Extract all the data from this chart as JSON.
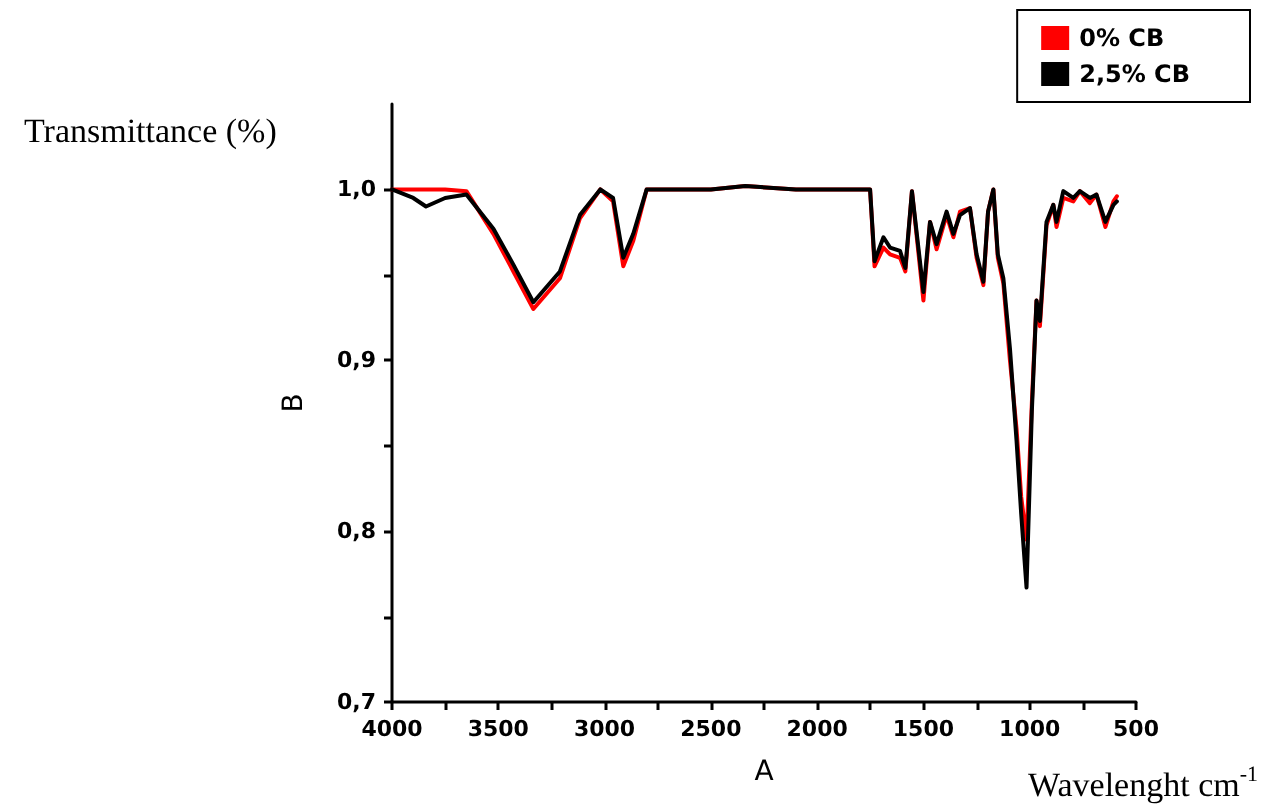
{
  "chart_data": {
    "type": "line",
    "xlabel": "A",
    "ylabel": "B",
    "annotations": [
      "Transmittance (%)",
      "Wavelenght cm$^{-1}$"
    ],
    "x": [
      4000,
      3900,
      3840,
      3750,
      3650,
      3523,
      3429,
      3335,
      3210,
      3116,
      3020,
      2960,
      2912,
      2865,
      2802,
      2500,
      2338,
      2100,
      1798,
      1751,
      1730,
      1688,
      1657,
      1610,
      1585,
      1554,
      1500,
      1469,
      1438,
      1391,
      1359,
      1328,
      1281,
      1250,
      1218,
      1196,
      1171,
      1150,
      1124,
      1093,
      1062,
      1040,
      1015,
      990,
      968,
      952,
      921,
      889,
      874,
      842,
      795,
      764,
      717,
      686,
      644,
      606,
      590
    ],
    "series": [
      {
        "name": "0% CB",
        "color": "#ff0000",
        "values": [
          1.0,
          1.0,
          1.0,
          1.0,
          0.999,
          0.974,
          0.952,
          0.93,
          0.948,
          0.983,
          1.0,
          0.993,
          0.955,
          0.97,
          1.0,
          1.0,
          1.002,
          1.0,
          1.0,
          1.0,
          0.955,
          0.966,
          0.962,
          0.96,
          0.952,
          0.999,
          0.935,
          0.981,
          0.965,
          0.985,
          0.972,
          0.987,
          0.989,
          0.96,
          0.944,
          0.987,
          1.0,
          0.96,
          0.945,
          0.9,
          0.86,
          0.82,
          0.795,
          0.875,
          0.935,
          0.92,
          0.979,
          0.991,
          0.978,
          0.995,
          0.993,
          0.999,
          0.992,
          0.997,
          0.978,
          0.993,
          0.996
        ]
      },
      {
        "name": "2,5% CB",
        "color": "#000000",
        "values": [
          1.0,
          0.995,
          0.99,
          0.995,
          0.997,
          0.977,
          0.956,
          0.934,
          0.952,
          0.985,
          1.0,
          0.995,
          0.96,
          0.974,
          1.0,
          1.0,
          1.002,
          1.0,
          1.0,
          1.0,
          0.958,
          0.972,
          0.966,
          0.964,
          0.954,
          0.999,
          0.94,
          0.981,
          0.968,
          0.987,
          0.974,
          0.985,
          0.989,
          0.962,
          0.946,
          0.987,
          1.0,
          0.962,
          0.948,
          0.907,
          0.853,
          0.81,
          0.767,
          0.87,
          0.935,
          0.923,
          0.981,
          0.991,
          0.981,
          0.999,
          0.995,
          0.999,
          0.995,
          0.997,
          0.981,
          0.991,
          0.993
        ]
      }
    ],
    "xlim": [
      4000,
      500
    ],
    "xticks": [
      4000,
      {
        "value": 3750,
        "label": null
      },
      3500,
      {
        "value": 3250,
        "label": null
      },
      3000,
      {
        "value": 2750,
        "label": null
      },
      2500,
      {
        "value": 2250,
        "label": null
      },
      2000,
      {
        "value": 1750,
        "label": null
      },
      1500,
      {
        "value": 1250,
        "label": null
      },
      1000,
      {
        "value": 750,
        "label": null
      },
      500
    ],
    "ylim": [
      0.7,
      1.05
    ],
    "yticks": [
      {
        "value": 0.7,
        "label": "0,7"
      },
      {
        "value": 0.75,
        "label": null
      },
      {
        "value": 0.8,
        "label": "0,8"
      },
      {
        "value": 0.85,
        "label": null
      },
      {
        "value": 0.9,
        "label": "0,9"
      },
      {
        "value": 0.95,
        "label": null
      },
      {
        "value": 1.0,
        "label": "1,0"
      }
    ],
    "grid": false,
    "legend": "top right",
    "marker": "none",
    "line_style": "solid"
  }
}
